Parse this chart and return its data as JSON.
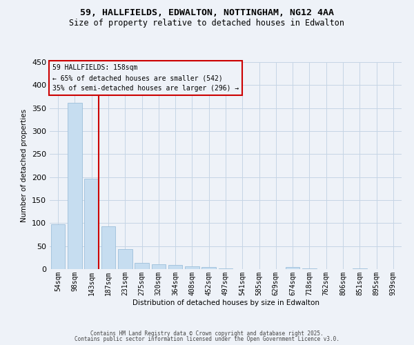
{
  "title": "59, HALLFIELDS, EDWALTON, NOTTINGHAM, NG12 4AA",
  "subtitle": "Size of property relative to detached houses in Edwalton",
  "xlabel": "Distribution of detached houses by size in Edwalton",
  "ylabel": "Number of detached properties",
  "bar_labels": [
    "54sqm",
    "98sqm",
    "143sqm",
    "187sqm",
    "231sqm",
    "275sqm",
    "320sqm",
    "364sqm",
    "408sqm",
    "452sqm",
    "497sqm",
    "541sqm",
    "585sqm",
    "629sqm",
    "674sqm",
    "718sqm",
    "762sqm",
    "806sqm",
    "851sqm",
    "895sqm",
    "939sqm"
  ],
  "bar_values": [
    98,
    362,
    196,
    93,
    44,
    13,
    10,
    9,
    6,
    4,
    1,
    0,
    0,
    0,
    4,
    2,
    0,
    0,
    2,
    0,
    0
  ],
  "bar_color": "#c6ddf0",
  "bar_edge_color": "#9dbfdb",
  "property_line_index": 2,
  "annotation_line1": "59 HALLFIELDS: 158sqm",
  "annotation_line2": "← 65% of detached houses are smaller (542)",
  "annotation_line3": "35% of semi-detached houses are larger (296) →",
  "annotation_color": "#cc0000",
  "ylim": [
    0,
    450
  ],
  "yticks": [
    0,
    50,
    100,
    150,
    200,
    250,
    300,
    350,
    400,
    450
  ],
  "background_color": "#eef2f8",
  "grid_color": "#c5d5e5",
  "footer1": "Contains HM Land Registry data © Crown copyright and database right 2025.",
  "footer2": "Contains public sector information licensed under the Open Government Licence v3.0."
}
